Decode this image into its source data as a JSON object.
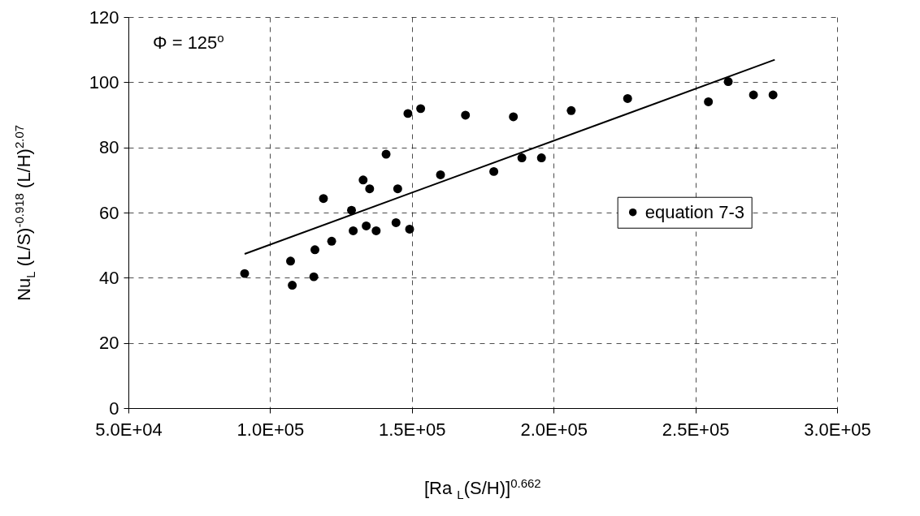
{
  "chart_data": {
    "type": "scatter",
    "xlabel": "[Ra $_{L}$(S/H)]$^{0.662}$",
    "ylabel": "Nu$_{L}$ (L/S)$^{-0.918}$ (L/H)$^{2.07}$",
    "annotations": [
      "Φ = 125$^{o}$"
    ],
    "xlim": [
      50000,
      300000
    ],
    "xticks": [
      {
        "value": 50000,
        "label": "5.0E+04"
      },
      {
        "value": 100000,
        "label": "1.0E+05"
      },
      {
        "value": 150000,
        "label": "1.5E+05"
      },
      {
        "value": 200000,
        "label": "2.0E+05"
      },
      {
        "value": 250000,
        "label": "2.5E+05"
      },
      {
        "value": 300000,
        "label": "3.0E+05"
      }
    ],
    "ylim": [
      0,
      120
    ],
    "yticks": [
      0,
      20,
      40,
      60,
      80,
      100,
      120
    ],
    "grid": true,
    "legend": "right",
    "series": [
      {
        "name": "equation 7-3",
        "marker": "circle",
        "color": "#000000",
        "x": [
          91000,
          107200,
          107800,
          115400,
          115800,
          118800,
          121700,
          128700,
          129300,
          132800,
          133900,
          135100,
          137400,
          140900,
          144400,
          145000,
          148600,
          149200,
          153100,
          160100,
          168900,
          178900,
          185800,
          188800,
          195700,
          206200,
          226100,
          254600,
          261600,
          270500,
          277400
        ],
        "values": [
          41.3,
          45.1,
          37.7,
          40.3,
          48.6,
          64.3,
          51.2,
          60.7,
          54.4,
          70.0,
          55.9,
          67.3,
          54.4,
          77.9,
          56.9,
          67.3,
          90.4,
          54.9,
          91.9,
          71.6,
          89.9,
          72.6,
          89.4,
          76.8,
          76.8,
          91.3,
          95.0,
          94.0,
          100.2,
          96.1,
          96.1
        ]
      },
      {
        "type": "line",
        "marker": "none",
        "color": "#000000",
        "line_style": "solid",
        "x": [
          91000,
          278000
        ],
        "values": [
          47.3,
          106.9
        ]
      }
    ]
  }
}
